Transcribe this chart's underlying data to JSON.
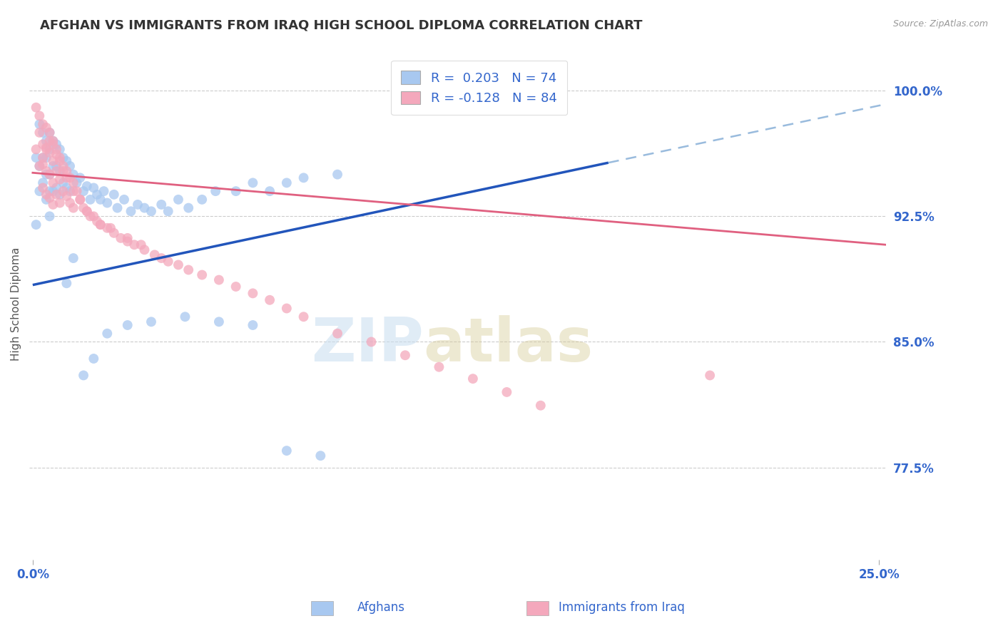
{
  "title": "AFGHAN VS IMMIGRANTS FROM IRAQ HIGH SCHOOL DIPLOMA CORRELATION CHART",
  "source": "Source: ZipAtlas.com",
  "xlabel_afghans": "Afghans",
  "xlabel_iraq": "Immigrants from Iraq",
  "ylabel": "High School Diploma",
  "xlim": [
    -0.001,
    0.252
  ],
  "ylim": [
    0.72,
    1.025
  ],
  "yticks": [
    0.775,
    0.85,
    0.925,
    1.0
  ],
  "ytick_labels": [
    "77.5%",
    "85.0%",
    "92.5%",
    "100.0%"
  ],
  "xticks": [
    0.0,
    0.25
  ],
  "xtick_labels": [
    "0.0%",
    "25.0%"
  ],
  "r_afghan": 0.203,
  "n_afghan": 74,
  "r_iraq": -0.128,
  "n_iraq": 84,
  "color_afghan": "#a8c8f0",
  "color_iraq": "#f4a8bc",
  "line_color_afghan": "#2255bb",
  "line_color_iraq": "#e06080",
  "dashed_line_color": "#99bbdd",
  "background_color": "#ffffff",
  "grid_color": "#cccccc",
  "tick_color": "#3366cc",
  "title_color": "#333333",
  "afghan_line_x0": 0.0,
  "afghan_line_y0": 0.884,
  "afghan_line_x1": 0.17,
  "afghan_line_y1": 0.957,
  "dashed_line_x0": 0.17,
  "dashed_line_y0": 0.957,
  "dashed_line_x1": 0.252,
  "dashed_line_y1": 0.992,
  "iraq_line_x0": 0.0,
  "iraq_line_y0": 0.951,
  "iraq_line_x1": 0.252,
  "iraq_line_y1": 0.908,
  "afghan_x": [
    0.001,
    0.001,
    0.002,
    0.002,
    0.002,
    0.003,
    0.003,
    0.003,
    0.004,
    0.004,
    0.004,
    0.004,
    0.005,
    0.005,
    0.005,
    0.005,
    0.005,
    0.006,
    0.006,
    0.006,
    0.007,
    0.007,
    0.007,
    0.008,
    0.008,
    0.008,
    0.009,
    0.009,
    0.01,
    0.01,
    0.011,
    0.011,
    0.012,
    0.013,
    0.014,
    0.015,
    0.016,
    0.017,
    0.018,
    0.019,
    0.02,
    0.021,
    0.022,
    0.024,
    0.025,
    0.027,
    0.029,
    0.031,
    0.033,
    0.035,
    0.038,
    0.04,
    0.043,
    0.046,
    0.05,
    0.054,
    0.06,
    0.065,
    0.07,
    0.075,
    0.08,
    0.09,
    0.01,
    0.012,
    0.015,
    0.018,
    0.022,
    0.028,
    0.035,
    0.045,
    0.055,
    0.065,
    0.075,
    0.085
  ],
  "afghan_y": [
    0.96,
    0.92,
    0.98,
    0.955,
    0.94,
    0.975,
    0.96,
    0.945,
    0.97,
    0.96,
    0.95,
    0.935,
    0.975,
    0.965,
    0.95,
    0.94,
    0.925,
    0.97,
    0.955,
    0.94,
    0.968,
    0.955,
    0.942,
    0.965,
    0.952,
    0.938,
    0.96,
    0.945,
    0.958,
    0.942,
    0.955,
    0.94,
    0.95,
    0.945,
    0.948,
    0.94,
    0.943,
    0.935,
    0.942,
    0.938,
    0.935,
    0.94,
    0.933,
    0.938,
    0.93,
    0.935,
    0.928,
    0.932,
    0.93,
    0.928,
    0.932,
    0.928,
    0.935,
    0.93,
    0.935,
    0.94,
    0.94,
    0.945,
    0.94,
    0.945,
    0.948,
    0.95,
    0.885,
    0.9,
    0.83,
    0.84,
    0.855,
    0.86,
    0.862,
    0.865,
    0.862,
    0.86,
    0.785,
    0.782
  ],
  "iraq_x": [
    0.001,
    0.001,
    0.002,
    0.002,
    0.002,
    0.003,
    0.003,
    0.003,
    0.003,
    0.004,
    0.004,
    0.004,
    0.004,
    0.005,
    0.005,
    0.005,
    0.005,
    0.006,
    0.006,
    0.006,
    0.006,
    0.007,
    0.007,
    0.007,
    0.008,
    0.008,
    0.008,
    0.009,
    0.009,
    0.01,
    0.01,
    0.011,
    0.011,
    0.012,
    0.012,
    0.013,
    0.014,
    0.015,
    0.016,
    0.017,
    0.018,
    0.019,
    0.02,
    0.022,
    0.024,
    0.026,
    0.028,
    0.03,
    0.033,
    0.036,
    0.038,
    0.04,
    0.043,
    0.046,
    0.05,
    0.055,
    0.06,
    0.065,
    0.07,
    0.075,
    0.08,
    0.09,
    0.1,
    0.11,
    0.12,
    0.13,
    0.14,
    0.15,
    0.003,
    0.004,
    0.005,
    0.006,
    0.007,
    0.008,
    0.009,
    0.01,
    0.012,
    0.014,
    0.016,
    0.02,
    0.023,
    0.028,
    0.032,
    0.2
  ],
  "iraq_y": [
    0.99,
    0.965,
    0.985,
    0.975,
    0.955,
    0.98,
    0.968,
    0.956,
    0.942,
    0.978,
    0.966,
    0.952,
    0.938,
    0.975,
    0.963,
    0.95,
    0.936,
    0.97,
    0.958,
    0.945,
    0.932,
    0.965,
    0.952,
    0.938,
    0.96,
    0.947,
    0.933,
    0.955,
    0.94,
    0.952,
    0.937,
    0.948,
    0.933,
    0.945,
    0.93,
    0.94,
    0.935,
    0.93,
    0.928,
    0.925,
    0.925,
    0.922,
    0.92,
    0.918,
    0.915,
    0.912,
    0.91,
    0.908,
    0.905,
    0.902,
    0.9,
    0.898,
    0.896,
    0.893,
    0.89,
    0.887,
    0.883,
    0.879,
    0.875,
    0.87,
    0.865,
    0.855,
    0.85,
    0.842,
    0.835,
    0.828,
    0.82,
    0.812,
    0.96,
    0.965,
    0.97,
    0.968,
    0.962,
    0.958,
    0.952,
    0.948,
    0.94,
    0.935,
    0.928,
    0.92,
    0.918,
    0.912,
    0.908,
    0.83
  ]
}
